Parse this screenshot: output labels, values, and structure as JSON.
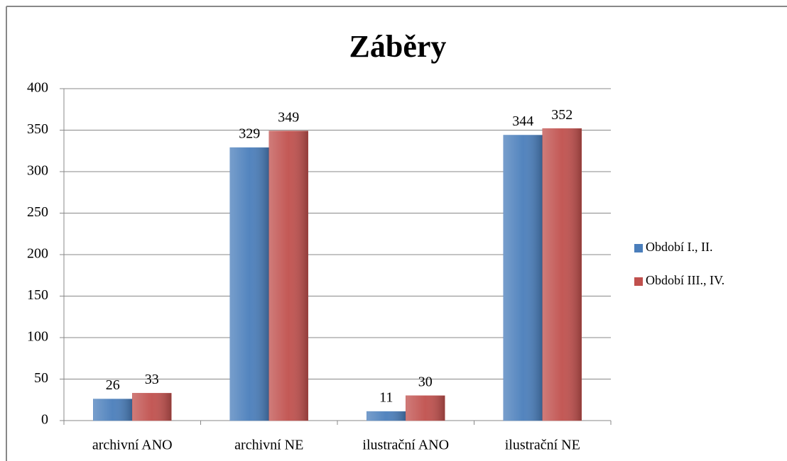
{
  "chart_data": {
    "type": "bar",
    "title": "Záběry",
    "categories": [
      "archivní ANO",
      "archivní NE",
      "ilustrační ANO",
      "ilustrační NE"
    ],
    "series": [
      {
        "name": "Období I., II.",
        "color": "#4a7ebb",
        "values": [
          26,
          329,
          11,
          344
        ]
      },
      {
        "name": "Období III., IV.",
        "color": "#c0504d",
        "values": [
          33,
          349,
          30,
          352
        ]
      }
    ],
    "ylim": [
      0,
      400
    ],
    "yticks": [
      0,
      50,
      100,
      150,
      200,
      250,
      300,
      350,
      400
    ],
    "grid": true,
    "legend": "right"
  }
}
